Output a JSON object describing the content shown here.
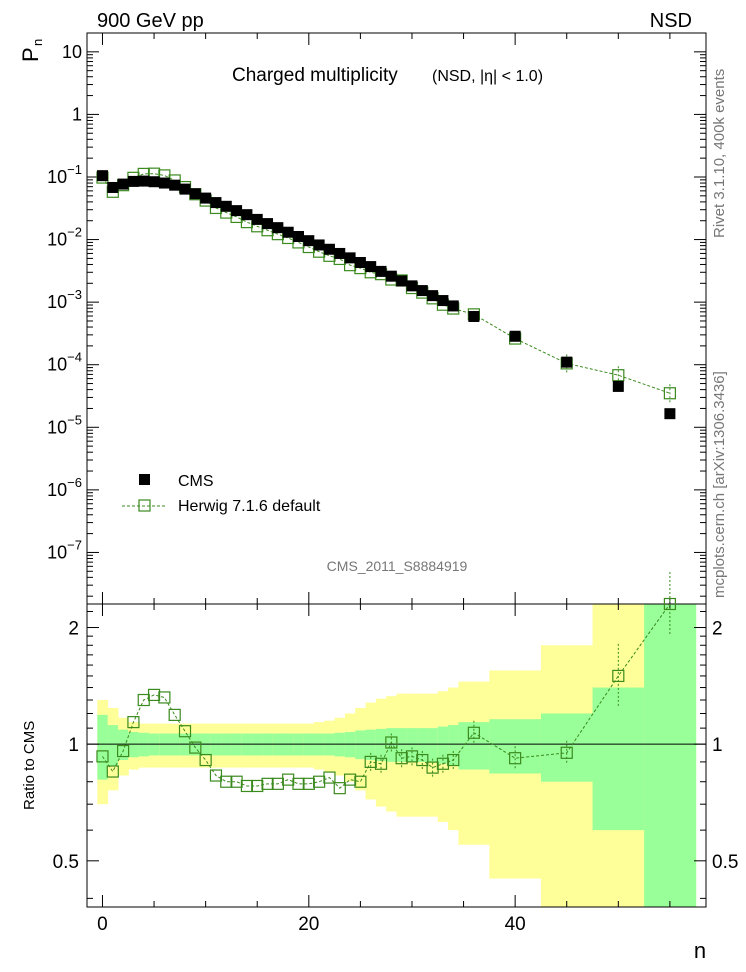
{
  "header": {
    "left": "900 GeV pp",
    "right": "NSD"
  },
  "title_main": "Charged multiplicity",
  "title_sub": "(NSD, |η| < 1.0)",
  "analysis_id": "CMS_2011_S8884919",
  "side_text_top": "Rivet 3.1.10,  400k events",
  "side_text_bottom": "mcplots.cern.ch [arXiv:1306.3436]",
  "y_label_top": "P",
  "y_label_top_sub": "n",
  "y_label_bottom": "Ratio to CMS",
  "x_label": "n",
  "legend": [
    {
      "label": "CMS"
    },
    {
      "label": "Herwig 7.1.6 default"
    }
  ],
  "colors": {
    "data": "#000000",
    "mc": "#3a8a1e",
    "band_inner": "#99ff99",
    "band_outer": "#ffff99"
  },
  "top_ticks": [
    {
      "v": 10,
      "b": "10",
      "e": ""
    },
    {
      "v": 1,
      "b": "1",
      "e": ""
    },
    {
      "v": 0.1,
      "b": "10",
      "e": "−1"
    },
    {
      "v": 0.01,
      "b": "10",
      "e": "−2"
    },
    {
      "v": 0.001,
      "b": "10",
      "e": "−3"
    },
    {
      "v": 0.0001,
      "b": "10",
      "e": "−4"
    },
    {
      "v": 1e-05,
      "b": "10",
      "e": "−5"
    },
    {
      "v": 1e-06,
      "b": "10",
      "e": "−6"
    },
    {
      "v": 1e-07,
      "b": "10",
      "e": "−7"
    }
  ],
  "ratio_ticks": [
    "2",
    "1",
    "0.5"
  ],
  "x_ticks": [
    "0",
    "20",
    "40"
  ],
  "chart_data": {
    "type": "scatter",
    "xlabel": "n",
    "ylabel": "P_n",
    "xlim": [
      -1.5,
      58.5
    ],
    "ylim": [
      1.5e-08,
      20
    ],
    "yscale": "log",
    "ratio_ylim": [
      0.38,
      2.3
    ],
    "series": [
      {
        "name": "CMS",
        "x": [
          0,
          1,
          2,
          3,
          4,
          5,
          6,
          7,
          8,
          9,
          10,
          11,
          12,
          13,
          14,
          15,
          16,
          17,
          18,
          19,
          20,
          21,
          22,
          23,
          24,
          25,
          26,
          27,
          28,
          29,
          30,
          31,
          32,
          33,
          34,
          36,
          40,
          45,
          50,
          55
        ],
        "values": [
          0.105,
          0.068,
          0.077,
          0.085,
          0.086,
          0.084,
          0.08,
          0.074,
          0.064,
          0.054,
          0.046,
          0.039,
          0.034,
          0.029,
          0.025,
          0.021,
          0.018,
          0.0155,
          0.0131,
          0.0112,
          0.0096,
          0.0082,
          0.007,
          0.006,
          0.0051,
          0.0043,
          0.0037,
          0.0031,
          0.0026,
          0.00218,
          0.00182,
          0.00153,
          0.00127,
          0.00106,
          0.00087,
          0.00059,
          0.000285,
          0.00011,
          4.5e-05,
          1.65e-05
        ]
      },
      {
        "name": "Herwig 7.1.6 default",
        "x": [
          0,
          1,
          2,
          3,
          4,
          5,
          6,
          7,
          8,
          9,
          10,
          11,
          12,
          13,
          14,
          15,
          16,
          17,
          18,
          19,
          20,
          21,
          22,
          23,
          24,
          25,
          26,
          27,
          28,
          29,
          30,
          31,
          32,
          33,
          34,
          36,
          40,
          45,
          50,
          55
        ],
        "values": [
          0.098,
          0.058,
          0.074,
          0.097,
          0.112,
          0.113,
          0.106,
          0.088,
          0.069,
          0.053,
          0.042,
          0.032,
          0.027,
          0.023,
          0.019,
          0.0163,
          0.0141,
          0.0122,
          0.0106,
          0.009,
          0.0076,
          0.0064,
          0.0055,
          0.0049,
          0.0039,
          0.0035,
          0.003,
          0.0028,
          0.0023,
          0.00222,
          0.00168,
          0.00142,
          0.00115,
          0.00091,
          0.00079,
          0.000638,
          0.000262,
          0.000105,
          6.8e-05,
          3.5e-05
        ],
        "ratio": [
          0.93,
          0.85,
          0.96,
          1.14,
          1.3,
          1.34,
          1.32,
          1.19,
          1.08,
          0.98,
          0.91,
          0.83,
          0.8,
          0.8,
          0.78,
          0.78,
          0.79,
          0.79,
          0.81,
          0.79,
          0.79,
          0.8,
          0.82,
          0.77,
          0.81,
          0.8,
          0.9,
          0.89,
          1.01,
          0.92,
          0.93,
          0.91,
          0.87,
          0.89,
          0.91,
          1.07,
          0.92,
          0.95,
          1.5,
          2.3
        ]
      }
    ],
    "uncertainty_band": {
      "x_edges": [
        -0.5,
        0.5,
        1.5,
        2.5,
        3.5,
        4.5,
        5.5,
        6.5,
        7.5,
        8.5,
        9.5,
        10.5,
        11.5,
        12.5,
        13.5,
        14.5,
        15.5,
        16.5,
        17.5,
        18.5,
        19.5,
        20.5,
        21.5,
        22.5,
        23.5,
        24.5,
        25.5,
        26.5,
        27.5,
        28.5,
        29.5,
        30.5,
        31.5,
        32.5,
        33.5,
        34.5,
        37.5,
        42.5,
        47.5,
        52.5,
        57.5
      ],
      "inner": [
        0.19,
        0.12,
        0.09,
        0.075,
        0.07,
        0.065,
        0.065,
        0.065,
        0.065,
        0.065,
        0.065,
        0.065,
        0.065,
        0.065,
        0.065,
        0.065,
        0.065,
        0.065,
        0.065,
        0.065,
        0.065,
        0.065,
        0.065,
        0.07,
        0.075,
        0.085,
        0.09,
        0.095,
        0.1,
        0.1,
        0.1,
        0.1,
        0.1,
        0.11,
        0.12,
        0.14,
        0.16,
        0.2,
        0.4,
        1.3
      ],
      "outer": [
        0.3,
        0.24,
        0.17,
        0.14,
        0.13,
        0.13,
        0.13,
        0.13,
        0.13,
        0.13,
        0.13,
        0.13,
        0.13,
        0.13,
        0.13,
        0.13,
        0.13,
        0.13,
        0.13,
        0.13,
        0.13,
        0.14,
        0.15,
        0.17,
        0.2,
        0.24,
        0.28,
        0.31,
        0.33,
        0.35,
        0.35,
        0.35,
        0.35,
        0.37,
        0.4,
        0.45,
        0.55,
        0.8,
        1.5,
        3.0
      ]
    }
  }
}
